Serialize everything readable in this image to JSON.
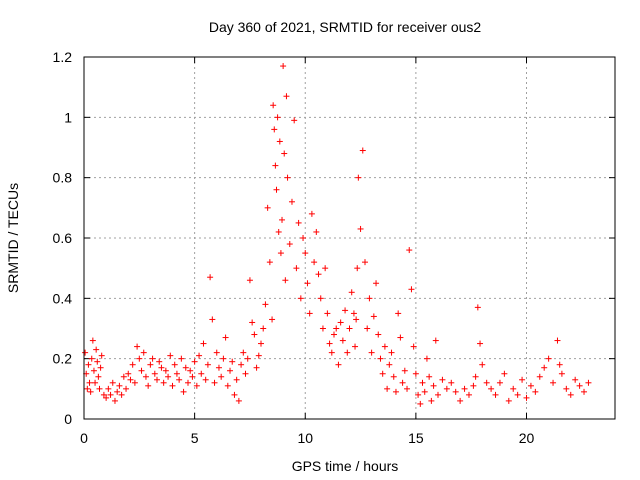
{
  "chart_data": {
    "type": "scatter",
    "title": "Day 360 of 2021, SRMTID for receiver ous2",
    "xlabel": "GPS time / hours",
    "ylabel": "SRMTID / TECUs",
    "xlim": [
      0,
      24
    ],
    "ylim": [
      0,
      1.2
    ],
    "xticks": [
      0,
      5,
      10,
      15,
      20
    ],
    "xtick_labels": [
      "0",
      "5",
      "10",
      "15",
      "20"
    ],
    "yticks": [
      0,
      0.2,
      0.4,
      0.6,
      0.8,
      1.0,
      1.2
    ],
    "ytick_labels": [
      "0",
      "0.2",
      "0.4",
      "0.6",
      "0.8",
      "1",
      "1.2"
    ],
    "grid": true,
    "marker": "+",
    "color": "#ff0000",
    "series": [
      {
        "name": "SRMTID",
        "x": [
          0.05,
          0.1,
          0.15,
          0.2,
          0.25,
          0.3,
          0.35,
          0.4,
          0.45,
          0.5,
          0.55,
          0.6,
          0.65,
          0.7,
          0.75,
          0.8,
          0.9,
          1.0,
          1.1,
          1.2,
          1.3,
          1.4,
          1.5,
          1.6,
          1.7,
          1.8,
          1.9,
          2.0,
          2.1,
          2.2,
          2.3,
          2.4,
          2.5,
          2.6,
          2.7,
          2.8,
          2.9,
          3.0,
          3.1,
          3.2,
          3.3,
          3.4,
          3.5,
          3.6,
          3.7,
          3.8,
          3.9,
          4.0,
          4.1,
          4.2,
          4.3,
          4.4,
          4.5,
          4.6,
          4.7,
          4.8,
          4.9,
          5.0,
          5.1,
          5.2,
          5.3,
          5.4,
          5.5,
          5.6,
          5.7,
          5.8,
          5.9,
          6.0,
          6.1,
          6.2,
          6.3,
          6.4,
          6.5,
          6.6,
          6.7,
          6.8,
          6.9,
          7.0,
          7.1,
          7.2,
          7.3,
          7.4,
          7.5,
          7.6,
          7.7,
          7.8,
          7.9,
          8.0,
          8.1,
          8.2,
          8.3,
          8.4,
          8.5,
          8.55,
          8.6,
          8.65,
          8.7,
          8.75,
          8.8,
          8.85,
          8.9,
          8.95,
          9.0,
          9.05,
          9.1,
          9.15,
          9.2,
          9.3,
          9.4,
          9.5,
          9.6,
          9.7,
          9.8,
          9.9,
          10.0,
          10.1,
          10.2,
          10.3,
          10.4,
          10.5,
          10.6,
          10.7,
          10.8,
          10.9,
          11.0,
          11.1,
          11.2,
          11.3,
          11.4,
          11.5,
          11.6,
          11.7,
          11.8,
          11.9,
          12.0,
          12.1,
          12.2,
          12.25,
          12.3,
          12.35,
          12.4,
          12.5,
          12.6,
          12.7,
          12.8,
          12.9,
          13.0,
          13.1,
          13.2,
          13.3,
          13.4,
          13.5,
          13.6,
          13.7,
          13.8,
          13.9,
          14.0,
          14.1,
          14.2,
          14.3,
          14.4,
          14.5,
          14.6,
          14.7,
          14.8,
          14.9,
          15.0,
          15.1,
          15.2,
          15.3,
          15.4,
          15.5,
          15.6,
          15.7,
          15.8,
          15.9,
          16.0,
          16.2,
          16.4,
          16.6,
          16.8,
          17.0,
          17.2,
          17.4,
          17.6,
          17.7,
          17.8,
          17.9,
          18.0,
          18.2,
          18.4,
          18.6,
          18.8,
          19.0,
          19.2,
          19.4,
          19.6,
          19.8,
          20.0,
          20.2,
          20.4,
          20.6,
          20.8,
          21.0,
          21.2,
          21.4,
          21.5,
          21.6,
          21.8,
          22.0,
          22.2,
          22.4,
          22.6,
          22.8
        ],
        "y": [
          0.22,
          0.15,
          0.1,
          0.18,
          0.12,
          0.09,
          0.2,
          0.26,
          0.16,
          0.12,
          0.23,
          0.19,
          0.14,
          0.1,
          0.17,
          0.21,
          0.08,
          0.07,
          0.1,
          0.08,
          0.12,
          0.06,
          0.09,
          0.11,
          0.08,
          0.14,
          0.1,
          0.15,
          0.13,
          0.18,
          0.12,
          0.24,
          0.2,
          0.16,
          0.22,
          0.14,
          0.11,
          0.18,
          0.2,
          0.15,
          0.13,
          0.19,
          0.17,
          0.12,
          0.16,
          0.14,
          0.21,
          0.11,
          0.18,
          0.15,
          0.13,
          0.2,
          0.09,
          0.17,
          0.12,
          0.16,
          0.14,
          0.19,
          0.11,
          0.21,
          0.15,
          0.25,
          0.13,
          0.18,
          0.47,
          0.33,
          0.12,
          0.22,
          0.17,
          0.14,
          0.2,
          0.27,
          0.11,
          0.16,
          0.19,
          0.08,
          0.13,
          0.06,
          0.18,
          0.22,
          0.15,
          0.2,
          0.46,
          0.32,
          0.28,
          0.17,
          0.21,
          0.25,
          0.3,
          0.38,
          0.7,
          0.52,
          0.33,
          1.04,
          0.96,
          0.84,
          0.76,
          1.0,
          0.62,
          0.92,
          0.55,
          0.66,
          1.17,
          0.88,
          0.46,
          1.07,
          0.8,
          0.58,
          0.72,
          0.99,
          0.5,
          0.65,
          0.4,
          0.6,
          0.55,
          0.45,
          0.35,
          0.68,
          0.52,
          0.62,
          0.48,
          0.4,
          0.3,
          0.5,
          0.35,
          0.25,
          0.22,
          0.28,
          0.3,
          0.18,
          0.32,
          0.26,
          0.36,
          0.22,
          0.3,
          0.42,
          0.35,
          0.24,
          0.33,
          0.5,
          0.8,
          0.63,
          0.89,
          0.52,
          0.3,
          0.4,
          0.22,
          0.34,
          0.45,
          0.28,
          0.2,
          0.15,
          0.24,
          0.1,
          0.18,
          0.22,
          0.14,
          0.09,
          0.35,
          0.27,
          0.12,
          0.16,
          0.1,
          0.56,
          0.43,
          0.24,
          0.15,
          0.08,
          0.05,
          0.12,
          0.09,
          0.2,
          0.14,
          0.06,
          0.11,
          0.26,
          0.08,
          0.13,
          0.1,
          0.12,
          0.09,
          0.06,
          0.1,
          0.08,
          0.11,
          0.14,
          0.37,
          0.25,
          0.18,
          0.12,
          0.1,
          0.08,
          0.12,
          0.15,
          0.06,
          0.1,
          0.08,
          0.13,
          0.07,
          0.11,
          0.09,
          0.14,
          0.17,
          0.2,
          0.12,
          0.26,
          0.18,
          0.15,
          0.1,
          0.08,
          0.13,
          0.11,
          0.09,
          0.12
        ]
      }
    ]
  }
}
